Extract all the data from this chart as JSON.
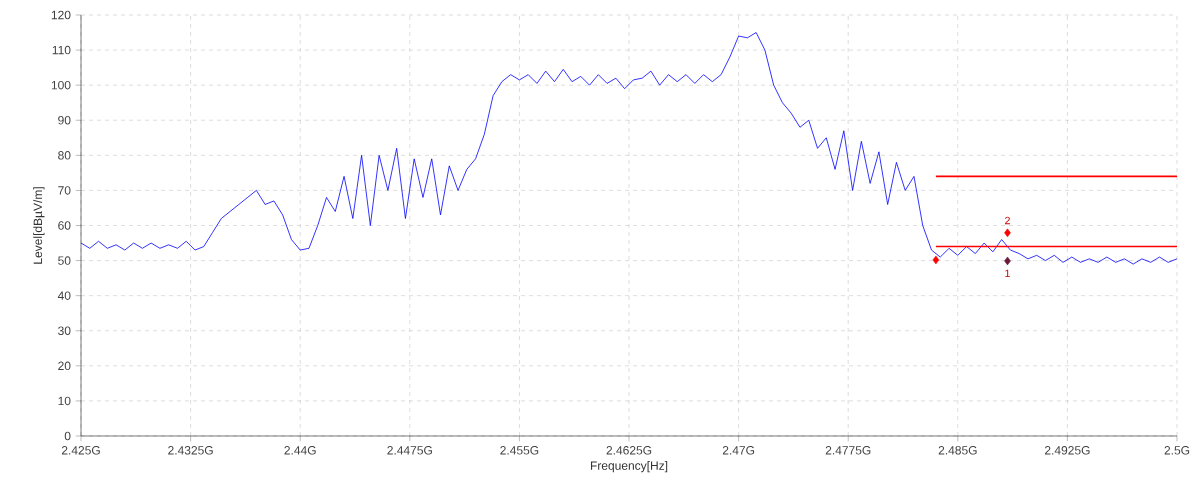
{
  "chart_data": {
    "type": "line",
    "xlabel": "Frequency[Hz]",
    "ylabel": "Level[dBµV/m]",
    "xlim": [
      2.425,
      2.5
    ],
    "ylim": [
      0,
      120
    ],
    "xticks": [
      {
        "value": 2.425,
        "label": "2.425G"
      },
      {
        "value": 2.4325,
        "label": "2.4325G"
      },
      {
        "value": 2.44,
        "label": "2.44G"
      },
      {
        "value": 2.4475,
        "label": "2.4475G"
      },
      {
        "value": 2.455,
        "label": "2.455G"
      },
      {
        "value": 2.4625,
        "label": "2.4625G"
      },
      {
        "value": 2.47,
        "label": "2.47G"
      },
      {
        "value": 2.4775,
        "label": "2.4775G"
      },
      {
        "value": 2.485,
        "label": "2.485G"
      },
      {
        "value": 2.4925,
        "label": "2.4925G"
      },
      {
        "value": 2.5,
        "label": "2.5G"
      }
    ],
    "yticks": [
      0,
      10,
      20,
      30,
      40,
      50,
      60,
      70,
      80,
      90,
      100,
      110,
      120
    ],
    "grid": true,
    "series": [
      {
        "color": "#0000ff",
        "x": [
          2.425,
          2.4256,
          2.4262,
          2.4268,
          2.4274,
          2.428,
          2.4286,
          2.4292,
          2.4298,
          2.4304,
          2.431,
          2.4316,
          2.4322,
          2.4328,
          2.4334,
          2.434,
          2.4346,
          2.4352,
          2.4358,
          2.4364,
          2.437,
          2.4376,
          2.4382,
          2.4388,
          2.4394,
          2.44,
          2.4406,
          2.4412,
          2.4418,
          2.4424,
          2.443,
          2.4436,
          2.4442,
          2.4448,
          2.4454,
          2.446,
          2.4466,
          2.4472,
          2.4478,
          2.4484,
          2.449,
          2.4496,
          2.4502,
          2.4508,
          2.4514,
          2.452,
          2.4526,
          2.4532,
          2.4538,
          2.4544,
          2.455,
          2.4556,
          2.4562,
          2.4568,
          2.4574,
          2.458,
          2.4586,
          2.4592,
          2.4598,
          2.4604,
          2.461,
          2.4616,
          2.4622,
          2.4628,
          2.4634,
          2.464,
          2.4646,
          2.4652,
          2.4658,
          2.4664,
          2.467,
          2.4676,
          2.4682,
          2.4688,
          2.4694,
          2.47,
          2.4706,
          2.4712,
          2.4718,
          2.4724,
          2.473,
          2.4736,
          2.4742,
          2.4748,
          2.4754,
          2.476,
          2.4766,
          2.4772,
          2.4778,
          2.4784,
          2.479,
          2.4796,
          2.4802,
          2.4808,
          2.4814,
          2.482,
          2.4826,
          2.4832,
          2.4838,
          2.4844,
          2.485,
          2.4856,
          2.4862,
          2.4868,
          2.4874,
          2.488,
          2.4886,
          2.4892,
          2.4898,
          2.4904,
          2.491,
          2.4916,
          2.4922,
          2.4928,
          2.4934,
          2.494,
          2.4946,
          2.4952,
          2.4958,
          2.4964,
          2.497,
          2.4976,
          2.4982,
          2.4988,
          2.4994,
          2.5
        ],
        "values": [
          55,
          53.5,
          55.5,
          53.5,
          54.5,
          53,
          55,
          53.5,
          55,
          53.5,
          54.5,
          53.5,
          55.5,
          53,
          54,
          58,
          62,
          64,
          66,
          68,
          70,
          66,
          67,
          63,
          56,
          53,
          53.5,
          60,
          68,
          64,
          74,
          62,
          80,
          60,
          80,
          70,
          82,
          62,
          79,
          68,
          79,
          63,
          77,
          70,
          76,
          79,
          86,
          97,
          101,
          103,
          101.5,
          103,
          100.5,
          104,
          101,
          104.5,
          101,
          102.5,
          100,
          103,
          100.5,
          102,
          99,
          101.5,
          102,
          104,
          100,
          103,
          101,
          103,
          100.5,
          103,
          101,
          103,
          108,
          114,
          113.5,
          115,
          110,
          100,
          95,
          92,
          88,
          90,
          82,
          85,
          76,
          87,
          70,
          84,
          72,
          81,
          66,
          78,
          70,
          74,
          60,
          53,
          51,
          53.5,
          51.5,
          54,
          52,
          55,
          52.5,
          56,
          53,
          52,
          50.5,
          51.5,
          50,
          51.5,
          49.5,
          51,
          49.5,
          50.5,
          49.5,
          51,
          49.5,
          50.5,
          49,
          50.5,
          49.5,
          51,
          49.5,
          50.5
        ]
      },
      {
        "type": "line",
        "color": "#ff0000",
        "x": [
          2.4835,
          2.5
        ],
        "values": [
          74,
          74
        ]
      },
      {
        "type": "line",
        "color": "#ff0000",
        "x": [
          2.4835,
          2.5
        ],
        "values": [
          54,
          54
        ]
      },
      {
        "type": "scatter",
        "color": "#ff0000",
        "marker": "diamond",
        "x": [
          2.4835,
          2.4884
        ],
        "values": [
          50.2,
          57.9
        ]
      },
      {
        "type": "scatter",
        "color": "#6b1a3a",
        "marker": "diamond",
        "x": [
          2.4884
        ],
        "values": [
          49.9
        ]
      }
    ],
    "annotations": [
      {
        "text": "2",
        "x": 2.4884,
        "y": 57.9
      },
      {
        "text": "1",
        "x": 2.4884,
        "y": 49.9
      }
    ]
  }
}
